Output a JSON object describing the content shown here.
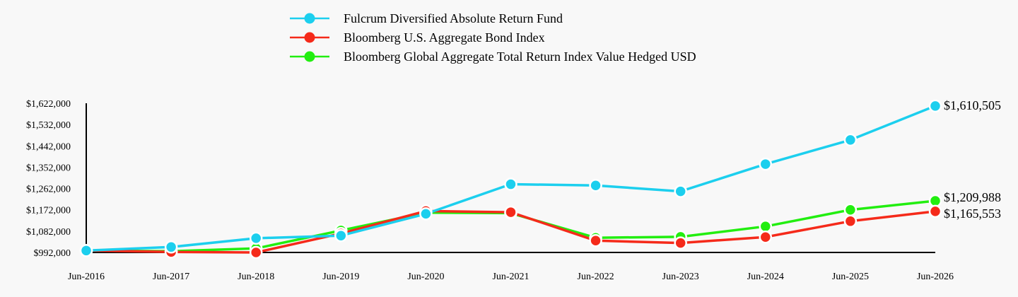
{
  "chart_data": {
    "type": "line",
    "title": "",
    "xlabel": "",
    "ylabel": "",
    "categories": [
      "Jun-2016",
      "Jun-2017",
      "Jun-2018",
      "Jun-2019",
      "Jun-2020",
      "Jun-2021",
      "Jun-2022",
      "Jun-2023",
      "Jun-2024",
      "Jun-2025",
      "Jun-2026"
    ],
    "ylim": [
      992000,
      1622000
    ],
    "yticks": [
      992000,
      1082000,
      1172000,
      1262000,
      1352000,
      1442000,
      1532000,
      1622000
    ],
    "ytick_labels": [
      "$992,000",
      "$1,082,000",
      "$1,172,000",
      "$1,262,000",
      "$1,352,000",
      "$1,442,000",
      "$1,532,000",
      "$1,622,000"
    ],
    "grid": false,
    "legend_position": "top",
    "series": [
      {
        "name": "Fulcrum Diversified Absolute Return Fund",
        "color": "#1ccfee",
        "values": [
          1000000,
          1015000,
          1052000,
          1063000,
          1155000,
          1280000,
          1275000,
          1250000,
          1365000,
          1467000,
          1610505
        ],
        "end_label": "$1,610,505"
      },
      {
        "name": "Bloomberg U.S. Aggregate Bond Index",
        "color": "#f52a1a",
        "values": [
          1000000,
          994000,
          992000,
          1072000,
          1167000,
          1162000,
          1042000,
          1032000,
          1057000,
          1124000,
          1165553
        ],
        "end_label": "$1,165,553"
      },
      {
        "name": "Bloomberg Global Aggregate Total Return Index Value Hedged USD",
        "color": "#22ee10",
        "values": [
          1000000,
          997000,
          1009000,
          1085000,
          1160000,
          1158000,
          1054000,
          1058000,
          1102000,
          1172000,
          1209988
        ],
        "end_label": "$1,209,988"
      }
    ]
  }
}
